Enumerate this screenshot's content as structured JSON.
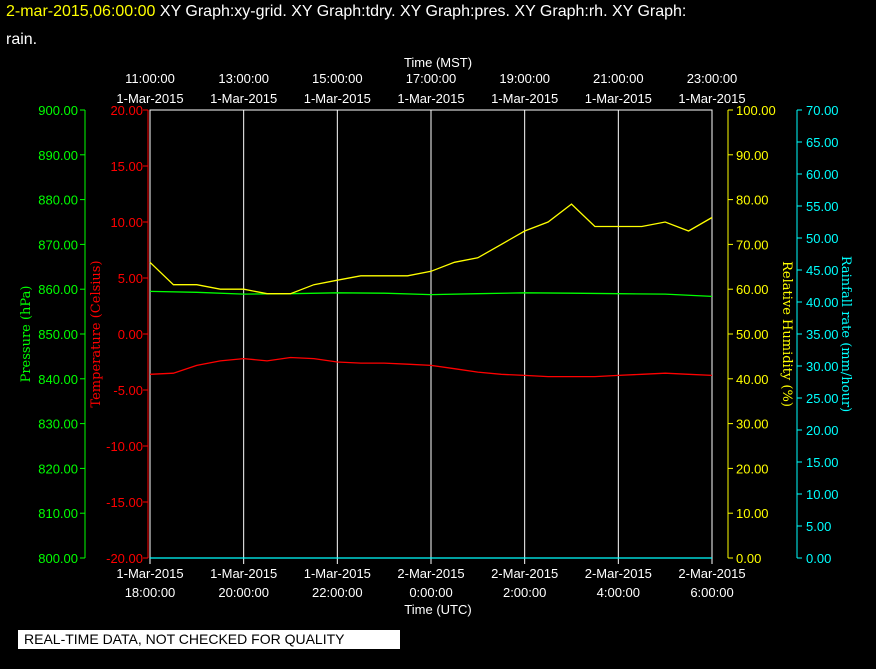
{
  "header": {
    "timestamp": "2-mar-2015,06:00:00",
    "graphs_line1": "XY Graph:xy-grid.  XY Graph:tdry.  XY Graph:pres.  XY Graph:rh.  XY Graph:",
    "graphs_line2": "rain."
  },
  "disclaimer": "REAL-TIME DATA, NOT CHECKED FOR QUALITY",
  "colors": {
    "background": "#000000",
    "grid": "#ffffff",
    "pressure": "#00ff00",
    "temperature": "#ff0000",
    "humidity": "#ffff00",
    "rainfall": "#00ffff"
  },
  "chart_data": {
    "type": "line",
    "x_axis_top": {
      "label": "Time (MST)",
      "ticks": [
        {
          "time": "11:00:00",
          "date": "1-Mar-2015"
        },
        {
          "time": "13:00:00",
          "date": "1-Mar-2015"
        },
        {
          "time": "15:00:00",
          "date": "1-Mar-2015"
        },
        {
          "time": "17:00:00",
          "date": "1-Mar-2015"
        },
        {
          "time": "19:00:00",
          "date": "1-Mar-2015"
        },
        {
          "time": "21:00:00",
          "date": "1-Mar-2015"
        },
        {
          "time": "23:00:00",
          "date": "1-Mar-2015"
        }
      ]
    },
    "x_axis_bottom": {
      "label": "Time (UTC)",
      "ticks": [
        {
          "date": "1-Mar-2015",
          "time": "18:00:00"
        },
        {
          "date": "1-Mar-2015",
          "time": "20:00:00"
        },
        {
          "date": "1-Mar-2015",
          "time": "22:00:00"
        },
        {
          "date": "2-Mar-2015",
          "time": "0:00:00"
        },
        {
          "date": "2-Mar-2015",
          "time": "2:00:00"
        },
        {
          "date": "2-Mar-2015",
          "time": "4:00:00"
        },
        {
          "date": "2-Mar-2015",
          "time": "6:00:00"
        }
      ],
      "range_hours_utc": [
        18,
        30
      ]
    },
    "y_axes": {
      "pressure": {
        "label": "Pressure (hPa)",
        "ylim": [
          800,
          900
        ],
        "ticks": [
          "900.00",
          "890.00",
          "880.00",
          "870.00",
          "860.00",
          "850.00",
          "840.00",
          "830.00",
          "820.00",
          "810.00",
          "800.00"
        ]
      },
      "temperature": {
        "label": "Temperature (Celsius)",
        "ylim": [
          -20,
          20
        ],
        "ticks": [
          "20.00",
          "15.00",
          "10.00",
          "5.00",
          "0.00",
          "-5.00",
          "-10.00",
          "-15.00",
          "-20.00"
        ]
      },
      "humidity": {
        "label": "Relative Humidity (%)",
        "ylim": [
          0,
          100
        ],
        "ticks": [
          "100.00",
          "90.00",
          "80.00",
          "70.00",
          "60.00",
          "50.00",
          "40.00",
          "30.00",
          "20.00",
          "10.00",
          "0.00"
        ]
      },
      "rainfall": {
        "label": "Rainfall rate (mm/hour)",
        "ylim": [
          0,
          70
        ],
        "ticks": [
          "70.00",
          "65.00",
          "60.00",
          "55.00",
          "50.00",
          "45.00",
          "40.00",
          "35.00",
          "30.00",
          "25.00",
          "20.00",
          "15.00",
          "10.00",
          "5.00",
          "0.00"
        ]
      }
    },
    "series": [
      {
        "key": "pressure",
        "x_hours_utc": [
          18,
          19,
          20,
          21,
          22,
          23,
          24,
          25,
          26,
          27,
          28,
          29,
          30
        ],
        "values": [
          859.5,
          859.3,
          858.9,
          859.0,
          859.2,
          859.1,
          858.8,
          859.0,
          859.2,
          859.1,
          859.0,
          858.9,
          858.4
        ]
      },
      {
        "key": "temperature",
        "x_hours_utc": [
          18,
          18.5,
          19,
          19.5,
          20,
          20.5,
          21,
          21.5,
          22,
          22.5,
          23,
          23.5,
          24,
          24.5,
          25,
          25.5,
          26,
          26.5,
          27,
          27.5,
          28,
          28.5,
          29,
          29.5,
          30
        ],
        "values": [
          -3.6,
          -3.5,
          -2.8,
          -2.4,
          -2.2,
          -2.4,
          -2.1,
          -2.2,
          -2.5,
          -2.6,
          -2.6,
          -2.7,
          -2.8,
          -3.1,
          -3.4,
          -3.6,
          -3.7,
          -3.8,
          -3.8,
          -3.8,
          -3.7,
          -3.6,
          -3.5,
          -3.6,
          -3.7
        ]
      },
      {
        "key": "humidity",
        "x_hours_utc": [
          18,
          18.5,
          19,
          19.5,
          20,
          20.5,
          21,
          21.5,
          22,
          22.5,
          23,
          23.5,
          24,
          24.5,
          25,
          25.5,
          26,
          26.5,
          27,
          27.5,
          28,
          28.5,
          29,
          29.5,
          30
        ],
        "values": [
          66,
          61,
          61,
          60,
          60,
          59,
          59,
          61,
          62,
          63,
          63,
          63,
          64,
          66,
          67,
          70,
          73,
          75,
          79,
          74,
          74,
          74,
          75,
          73,
          76
        ]
      },
      {
        "key": "rainfall",
        "x_hours_utc": [
          18,
          30
        ],
        "values": [
          0,
          0
        ]
      }
    ]
  }
}
